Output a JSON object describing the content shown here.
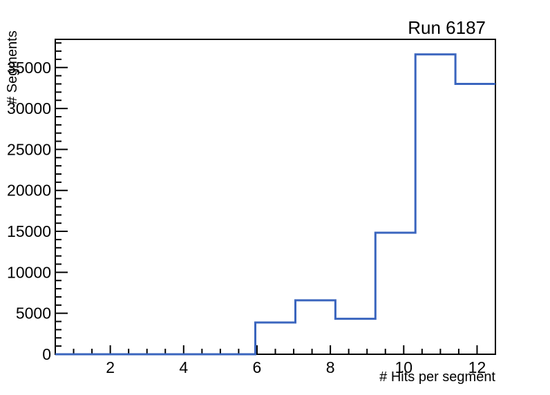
{
  "chart_data": {
    "type": "histogram-step",
    "title": "Run 6187",
    "xlabel": "# Hits per segment",
    "ylabel": "# Segments",
    "xlim": [
      0.5,
      12.5
    ],
    "ylim": [
      0,
      38440
    ],
    "n_bins": 11,
    "bin_edges": [
      0.5,
      1.5909,
      2.6818,
      3.7727,
      4.8636,
      5.9545,
      7.0455,
      8.1364,
      9.2273,
      10.3182,
      11.4091,
      12.5
    ],
    "bin_values": [
      0,
      0,
      0,
      0,
      0,
      3880,
      6580,
      4330,
      14840,
      36600,
      33000
    ],
    "x_major_ticks": [
      2,
      4,
      6,
      8,
      10,
      12
    ],
    "x_major_tick_labels": [
      "2",
      "4",
      "6",
      "8",
      "10",
      "12"
    ],
    "x_minor_tick_step": 0.5,
    "y_major_ticks": [
      0,
      5000,
      10000,
      15000,
      20000,
      25000,
      30000,
      35000
    ],
    "y_major_tick_labels": [
      "0",
      "5000",
      "10000",
      "15000",
      "20000",
      "25000",
      "30000",
      "35000"
    ],
    "y_minor_tick_step": 1000,
    "grid": false,
    "legend": false,
    "line_color": "#3A65BE",
    "axis_color": "#000000",
    "background_color": "#FFFFFF"
  }
}
